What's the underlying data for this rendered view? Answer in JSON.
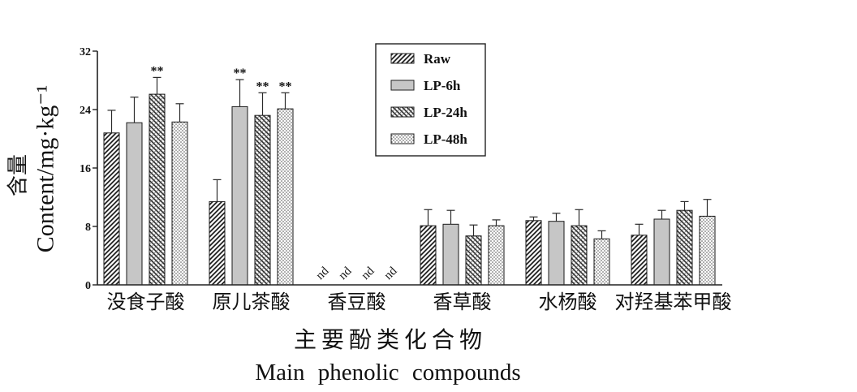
{
  "chart_data": {
    "type": "bar",
    "categories": [
      "没食子酸",
      "原儿茶酸",
      "香豆酸",
      "香草酸",
      "水杨酸",
      "对羟基苯甲酸"
    ],
    "series": [
      {
        "name": "Raw",
        "pattern": "diagonal-hatch",
        "values": [
          20.8,
          11.4,
          null,
          8.1,
          8.8,
          6.8
        ],
        "errors": [
          3.1,
          3.0,
          null,
          2.2,
          0.5,
          1.5
        ]
      },
      {
        "name": "LP-6h",
        "pattern": "solid-gray",
        "values": [
          22.2,
          24.4,
          null,
          8.3,
          8.7,
          9.0
        ],
        "errors": [
          3.5,
          3.7,
          null,
          1.9,
          1.1,
          1.2
        ]
      },
      {
        "name": "LP-24h",
        "pattern": "cross-hatch",
        "values": [
          26.1,
          23.2,
          null,
          6.7,
          8.1,
          10.2
        ],
        "errors": [
          2.3,
          3.1,
          null,
          1.5,
          2.2,
          1.2
        ]
      },
      {
        "name": "LP-48h",
        "pattern": "dots",
        "values": [
          22.3,
          24.1,
          null,
          8.1,
          6.3,
          9.4
        ],
        "errors": [
          2.5,
          2.2,
          null,
          0.8,
          1.1,
          2.3
        ]
      }
    ],
    "ylabel_cn": "含量",
    "ylabel": "Content/mg·kg⁻¹",
    "xlabel_cn": "主要酚类化合物",
    "xlabel": "Main phenolic compounds",
    "ylim": [
      0,
      32
    ],
    "yticks": [
      0,
      8,
      16,
      24,
      32
    ],
    "grid": false,
    "legend_position": "top-center",
    "not_detected": [
      {
        "category": "香豆酸",
        "series": "Raw",
        "label": "nd"
      },
      {
        "category": "香豆酸",
        "series": "LP-6h",
        "label": "nd"
      },
      {
        "category": "香豆酸",
        "series": "LP-24h",
        "label": "nd"
      },
      {
        "category": "香豆酸",
        "series": "LP-48h",
        "label": "nd"
      }
    ],
    "significance": [
      {
        "category": "没食子酸",
        "series": "LP-24h",
        "label": "**"
      },
      {
        "category": "原儿茶酸",
        "series": "LP-6h",
        "label": "**"
      },
      {
        "category": "原儿茶酸",
        "series": "LP-24h",
        "label": "**"
      },
      {
        "category": "原儿茶酸",
        "series": "LP-48h",
        "label": "**"
      }
    ]
  }
}
